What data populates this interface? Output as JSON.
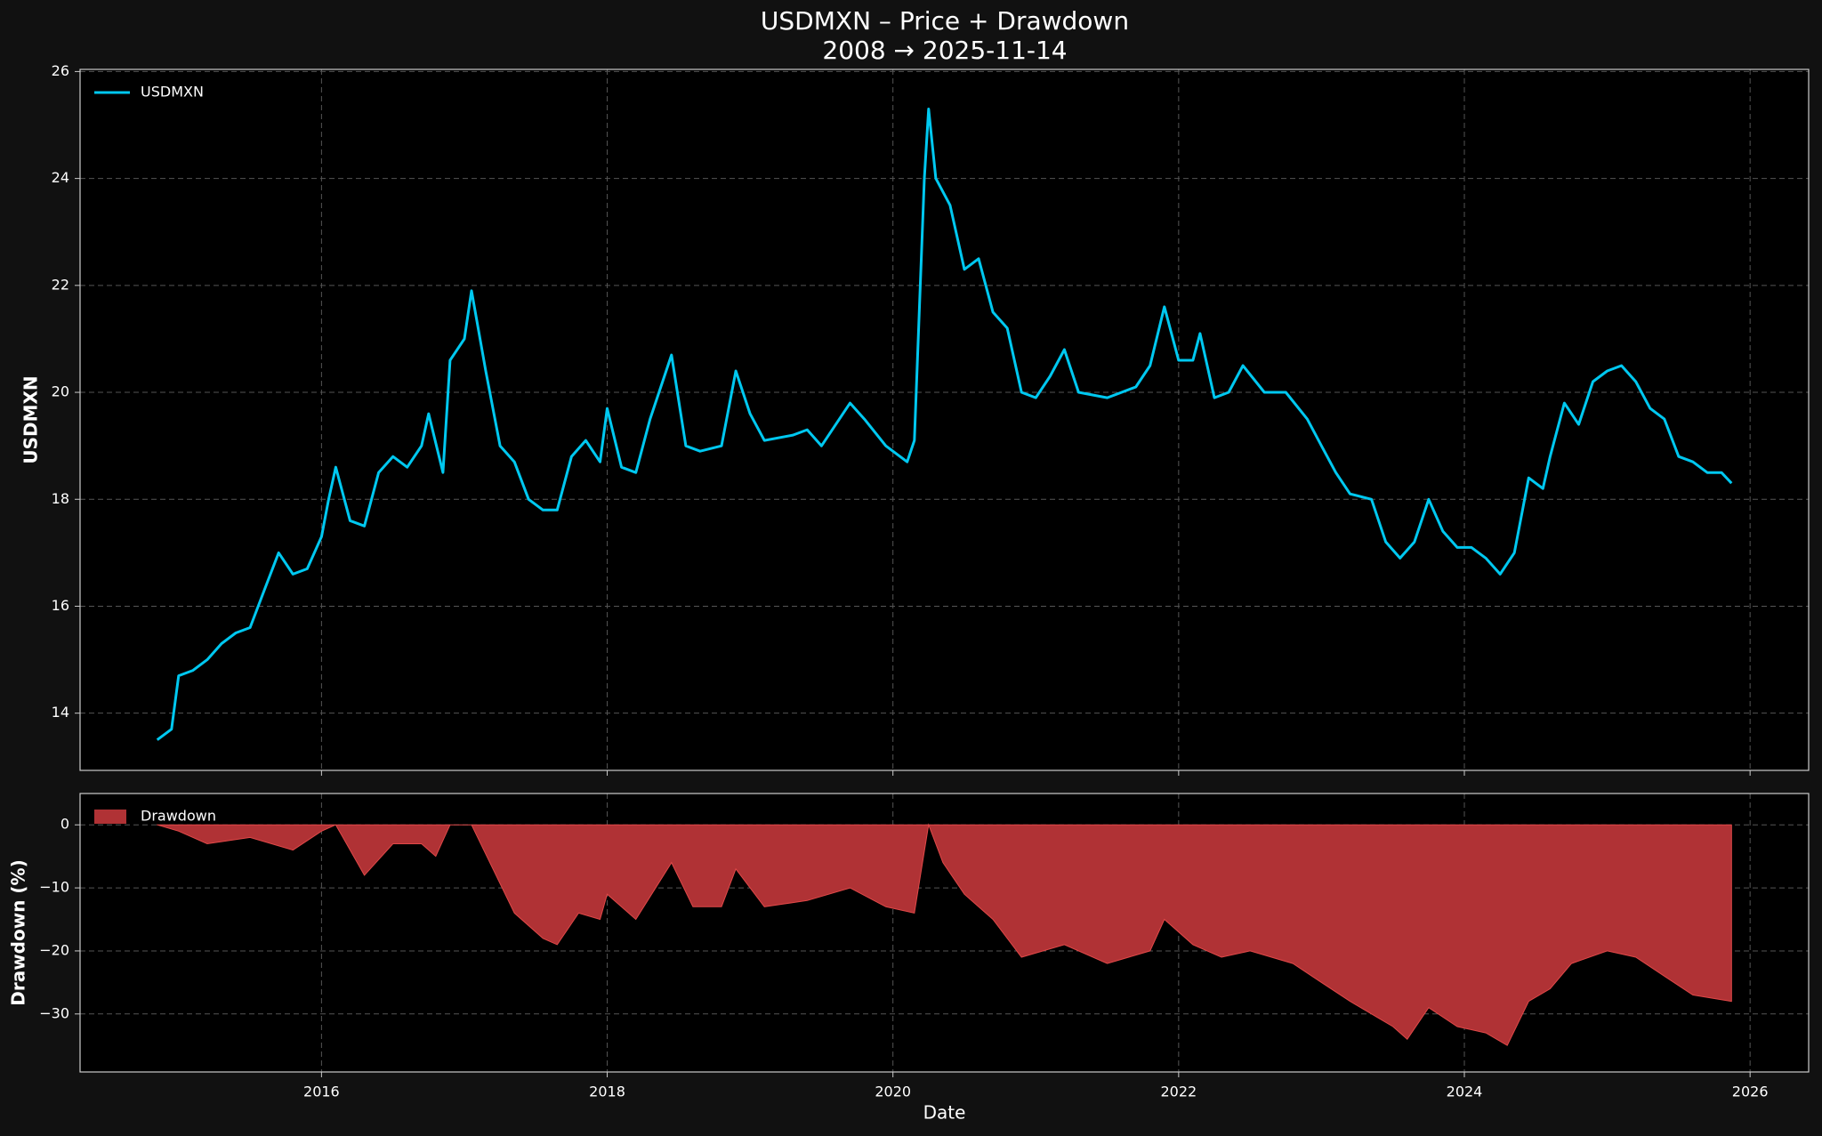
{
  "chart_data": [
    {
      "type": "line",
      "title": "USDMXN – Price + Drawdown",
      "subtitle": "2008 → 2025-11-14",
      "ylabel": "USDMXN",
      "x": [
        2014.85,
        2014.95,
        2015.0,
        2015.1,
        2015.2,
        2015.3,
        2015.4,
        2015.5,
        2015.6,
        2015.7,
        2015.8,
        2015.9,
        2016.0,
        2016.05,
        2016.1,
        2016.2,
        2016.3,
        2016.4,
        2016.5,
        2016.6,
        2016.7,
        2016.75,
        2016.85,
        2016.9,
        2017.0,
        2017.05,
        2017.15,
        2017.25,
        2017.35,
        2017.45,
        2017.55,
        2017.65,
        2017.75,
        2017.85,
        2017.95,
        2018.0,
        2018.1,
        2018.2,
        2018.3,
        2018.45,
        2018.55,
        2018.65,
        2018.8,
        2018.9,
        2019.0,
        2019.1,
        2019.3,
        2019.4,
        2019.5,
        2019.7,
        2019.8,
        2019.95,
        2020.1,
        2020.15,
        2020.22,
        2020.25,
        2020.3,
        2020.4,
        2020.5,
        2020.6,
        2020.7,
        2020.8,
        2020.9,
        2021.0,
        2021.1,
        2021.2,
        2021.3,
        2021.5,
        2021.7,
        2021.8,
        2021.9,
        2022.0,
        2022.1,
        2022.15,
        2022.25,
        2022.35,
        2022.45,
        2022.6,
        2022.75,
        2022.9,
        2023.0,
        2023.1,
        2023.2,
        2023.35,
        2023.45,
        2023.55,
        2023.65,
        2023.75,
        2023.85,
        2023.95,
        2024.05,
        2024.15,
        2024.25,
        2024.35,
        2024.45,
        2024.55,
        2024.6,
        2024.7,
        2024.8,
        2024.9,
        2025.0,
        2025.1,
        2025.2,
        2025.3,
        2025.4,
        2025.5,
        2025.6,
        2025.7,
        2025.8,
        2025.87
      ],
      "series": [
        {
          "name": "USDMXN",
          "color": "#00c8f0",
          "values": [
            13.5,
            13.7,
            14.7,
            14.8,
            15.0,
            15.3,
            15.5,
            15.6,
            16.3,
            17.0,
            16.6,
            16.7,
            17.3,
            18.0,
            18.6,
            17.6,
            17.5,
            18.5,
            18.8,
            18.6,
            19.0,
            19.6,
            18.5,
            20.6,
            21.0,
            21.9,
            20.4,
            19.0,
            18.7,
            18.0,
            17.8,
            17.8,
            18.8,
            19.1,
            18.7,
            19.7,
            18.6,
            18.5,
            19.5,
            20.7,
            19.0,
            18.9,
            19.0,
            20.4,
            19.6,
            19.1,
            19.2,
            19.3,
            19.0,
            19.8,
            19.5,
            19.0,
            18.7,
            19.1,
            24.0,
            25.3,
            24.0,
            23.5,
            22.3,
            22.5,
            21.5,
            21.2,
            20.0,
            19.9,
            20.3,
            20.8,
            20.0,
            19.9,
            20.1,
            20.5,
            21.6,
            20.6,
            20.6,
            21.1,
            19.9,
            20.0,
            20.5,
            20.0,
            20.0,
            19.5,
            19.0,
            18.5,
            18.1,
            18.0,
            17.2,
            16.9,
            17.2,
            18.0,
            17.4,
            17.1,
            17.1,
            16.9,
            16.6,
            17.0,
            18.4,
            18.2,
            18.8,
            19.8,
            19.4,
            20.2,
            20.4,
            20.5,
            20.2,
            19.7,
            19.5,
            18.8,
            18.7,
            18.5,
            18.5,
            18.3
          ]
        }
      ],
      "xlim": [
        2014.31,
        2026.41
      ],
      "ylim": [
        12.93,
        26.04
      ],
      "yticks": [
        14,
        16,
        18,
        20,
        22,
        24,
        26
      ],
      "grid": true,
      "legend": "upper left"
    },
    {
      "type": "area",
      "xlabel": "Date",
      "ylabel": "Drawdown (%)",
      "x": [
        2014.85,
        2015.0,
        2015.2,
        2015.5,
        2015.8,
        2016.0,
        2016.1,
        2016.3,
        2016.5,
        2016.7,
        2016.8,
        2016.9,
        2017.05,
        2017.2,
        2017.35,
        2017.55,
        2017.65,
        2017.8,
        2017.95,
        2018.0,
        2018.2,
        2018.45,
        2018.6,
        2018.8,
        2018.9,
        2019.1,
        2019.4,
        2019.7,
        2019.95,
        2020.15,
        2020.25,
        2020.35,
        2020.5,
        2020.7,
        2020.9,
        2021.2,
        2021.5,
        2021.8,
        2021.9,
        2022.1,
        2022.3,
        2022.5,
        2022.8,
        2023.0,
        2023.2,
        2023.5,
        2023.6,
        2023.75,
        2023.95,
        2024.15,
        2024.3,
        2024.45,
        2024.6,
        2024.75,
        2025.0,
        2025.2,
        2025.4,
        2025.6,
        2025.87
      ],
      "series": [
        {
          "name": "Drawdown",
          "color": "#b03235",
          "values": [
            0,
            -1,
            -3,
            -2,
            -4,
            -1,
            0,
            -8,
            -3,
            -3,
            -5,
            0,
            0,
            -7,
            -14,
            -18,
            -19,
            -14,
            -15,
            -11,
            -15,
            -6,
            -13,
            -13,
            -7,
            -13,
            -12,
            -10,
            -13,
            -14,
            0,
            -6,
            -11,
            -15,
            -21,
            -19,
            -22,
            -20,
            -15,
            -19,
            -21,
            -20,
            -22,
            -25,
            -28,
            -32,
            -34,
            -29,
            -32,
            -33,
            -35,
            -28,
            -26,
            -22,
            -20,
            -21,
            -24,
            -27,
            -28
          ]
        }
      ],
      "xlim": [
        2014.31,
        2026.41
      ],
      "ylim": [
        -39.2,
        4.97
      ],
      "xticks": [
        2016,
        2018,
        2020,
        2022,
        2024,
        2026
      ],
      "yticks": [
        {
          "value": -30,
          "label": "−30"
        },
        {
          "value": -20,
          "label": "−20"
        },
        {
          "value": -10,
          "label": "−10"
        },
        0
      ],
      "grid": true,
      "legend": "upper left"
    }
  ]
}
